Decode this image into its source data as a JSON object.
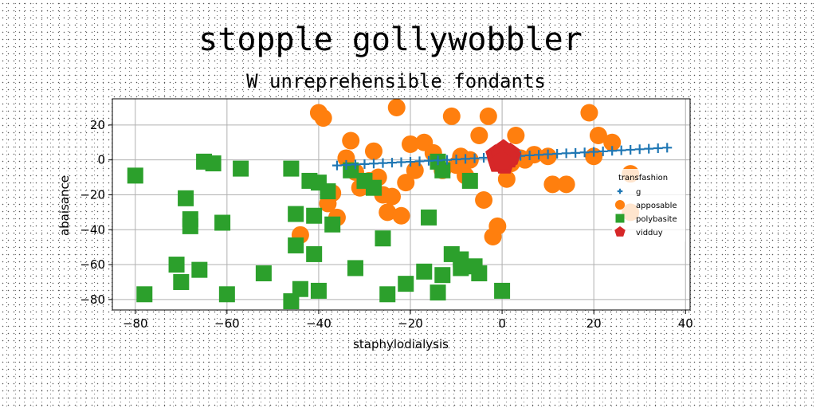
{
  "chart_data": {
    "type": "scatter",
    "title": "stopple gollywobbler",
    "subtitle": "W unreprehensible fondants",
    "xlabel": "staphylodialysis",
    "ylabel": "abaisance",
    "xlim": [
      -85,
      41
    ],
    "ylim": [
      -86,
      35
    ],
    "xticks": [
      -80,
      -60,
      -40,
      -20,
      0,
      20,
      40
    ],
    "yticks": [
      -80,
      -60,
      -40,
      -20,
      0,
      20
    ],
    "grid": true,
    "legend": {
      "title": "transfashion",
      "placement": "right"
    },
    "series": [
      {
        "name": "g",
        "marker": "plus",
        "color": "#1f77b4",
        "x": [
          -36,
          -34,
          -32,
          -30,
          -28,
          -26,
          -24,
          -22,
          -20,
          -18,
          -16,
          -14,
          -12,
          -10,
          -8,
          -6,
          -4,
          -2,
          0,
          2,
          4,
          6,
          8,
          10,
          12,
          14,
          16,
          18,
          20,
          22,
          24,
          26,
          28,
          30,
          32,
          34,
          36
        ],
        "y": [
          -3.2,
          -2.9,
          -2.6,
          -2.4,
          -2.1,
          -1.8,
          -1.6,
          -1.3,
          -1.1,
          -0.8,
          -0.5,
          -0.3,
          0.0,
          0.3,
          0.6,
          0.9,
          1.2,
          1.5,
          1.8,
          2.0,
          2.3,
          2.6,
          2.9,
          3.2,
          3.5,
          3.8,
          4.0,
          4.3,
          4.6,
          4.9,
          5.2,
          5.5,
          5.8,
          6.1,
          6.4,
          6.7,
          7.0
        ]
      },
      {
        "name": "apposable",
        "marker": "circle",
        "color": "#ff7f0e",
        "x": [
          -40,
          -39,
          -37,
          -38,
          -36,
          -34,
          -33,
          -32,
          -31,
          -29,
          -28,
          -27,
          -26,
          -25,
          -24,
          -23,
          -22,
          -21,
          -20,
          -19,
          -17,
          -15,
          -13,
          -11,
          -10,
          -9,
          -8,
          -7,
          -5,
          -4,
          -3,
          -2,
          -1,
          0,
          1,
          2,
          3,
          4,
          5,
          7,
          10,
          11,
          14,
          19,
          20,
          21,
          24,
          28,
          28,
          -44
        ],
        "y": [
          27,
          24,
          -19,
          -25,
          -33,
          1,
          11,
          -7,
          -16,
          -12,
          5,
          -10,
          -20,
          -30,
          -21,
          30,
          -32,
          -13,
          9,
          -6,
          10,
          4,
          -6,
          25,
          -3,
          2,
          -9,
          0,
          14,
          -23,
          25,
          -44,
          -38,
          5,
          -11,
          -2,
          14,
          1,
          0,
          3,
          2,
          -14,
          -14,
          27,
          2,
          14,
          10,
          -8,
          -30,
          -43
        ]
      },
      {
        "name": "polybasite",
        "marker": "square",
        "color": "#2ca02c",
        "x": [
          -80,
          -78,
          -71,
          -70,
          -69,
          -68,
          -68,
          -66,
          -65,
          -63,
          -61,
          -60,
          -57,
          -52,
          -46,
          -46,
          -45,
          -45,
          -44,
          -42,
          -41,
          -41,
          -40,
          -40,
          -38,
          -37,
          -33,
          -32,
          -30,
          -28,
          -26,
          -25,
          -21,
          -17,
          -16,
          -14,
          -14,
          -13,
          -13,
          -11,
          -9,
          -9,
          -7,
          -6,
          -5,
          0
        ],
        "y": [
          -9,
          -77,
          -60,
          -70,
          -22,
          -38,
          -34,
          -63,
          -1,
          -2,
          -36,
          -77,
          -5,
          -65,
          -5,
          -81,
          -31,
          -49,
          -74,
          -12,
          -54,
          -32,
          -13,
          -75,
          -18,
          -37,
          -6,
          -62,
          -12,
          -16,
          -45,
          -77,
          -71,
          -64,
          -33,
          -76,
          -1,
          -66,
          -6,
          -54,
          -57,
          -62,
          -12,
          -61,
          -65,
          -75
        ]
      },
      {
        "name": "vidduy",
        "marker": "pentagon",
        "color": "#d62728",
        "x": [
          -1.5,
          -1.0,
          -0.5,
          0.0,
          0.3,
          0.7,
          1.0,
          1.5,
          2.0,
          -1.2,
          0.5,
          1.8,
          -0.3,
          1.2,
          0.0
        ],
        "y": [
          3.0,
          -2.0,
          4.5,
          1.0,
          6.0,
          -1.0,
          3.5,
          0.5,
          2.0,
          0.0,
          -3.0,
          4.0,
          2.5,
          1.5,
          -0.5
        ]
      }
    ]
  }
}
